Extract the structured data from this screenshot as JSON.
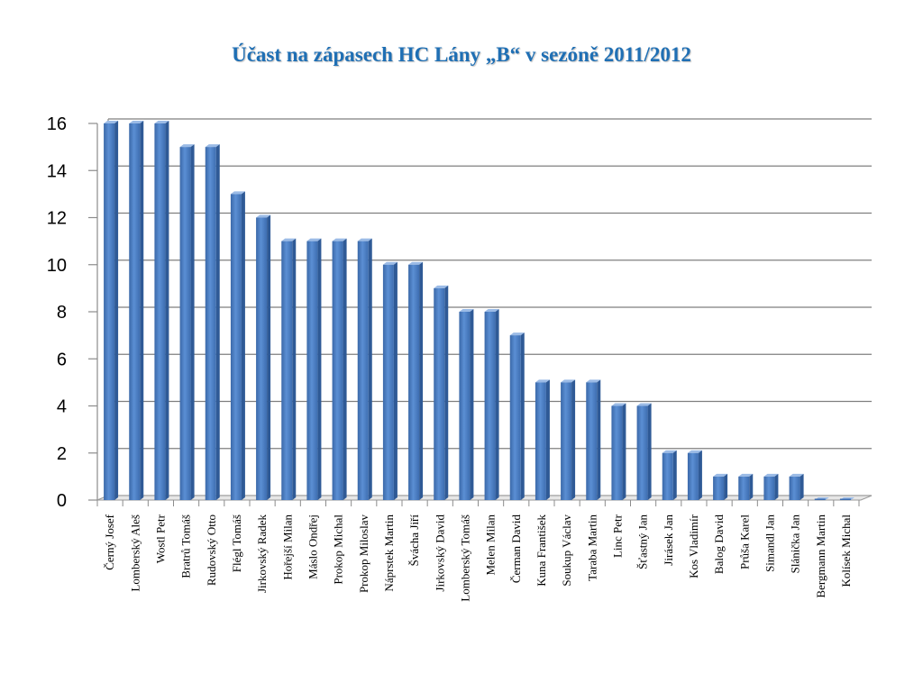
{
  "chart_data": {
    "type": "bar",
    "title": "Účast na zápasech HC Lány „B“ v sezóně 2011/2012",
    "xlabel": "",
    "ylabel": "",
    "ylim": [
      0,
      16
    ],
    "yticks": [
      0,
      2,
      4,
      6,
      8,
      10,
      12,
      14,
      16
    ],
    "grid": true,
    "legend": "none",
    "bar_color": "#4f81bd",
    "categories": [
      "Černý Josef",
      "Lomberský Aleš",
      "Wostl Petr",
      "Bratrů Tomáš",
      "Rudovský Otto",
      "Flégl Tomáš",
      "Jirkovský Radek",
      "Hořejší Milan",
      "Máslo Ondřej",
      "Prokop Michal",
      "Prokop Miloslav",
      "Náprstek Martin",
      "Šváchа Jiří",
      "Jirkovský David",
      "Lomberský Tomáš",
      "Melen Milan",
      "Čerman David",
      "Kuna František",
      "Soukup Václav",
      "Taraba Martin",
      "Linc Petr",
      "Šťastný Jan",
      "Jirásek Jan",
      "Kos Vladimír",
      "Balog David",
      "Průša Karel",
      "Simandl Jan",
      "Slánička Jan",
      "Bergmann Martin",
      "Kolísek Michal"
    ],
    "values": [
      16,
      16,
      16,
      15,
      15,
      13,
      12,
      11,
      11,
      11,
      11,
      10,
      10,
      9,
      8,
      8,
      7,
      5,
      5,
      5,
      4,
      4,
      2,
      2,
      1,
      1,
      1,
      1,
      0,
      0
    ]
  }
}
